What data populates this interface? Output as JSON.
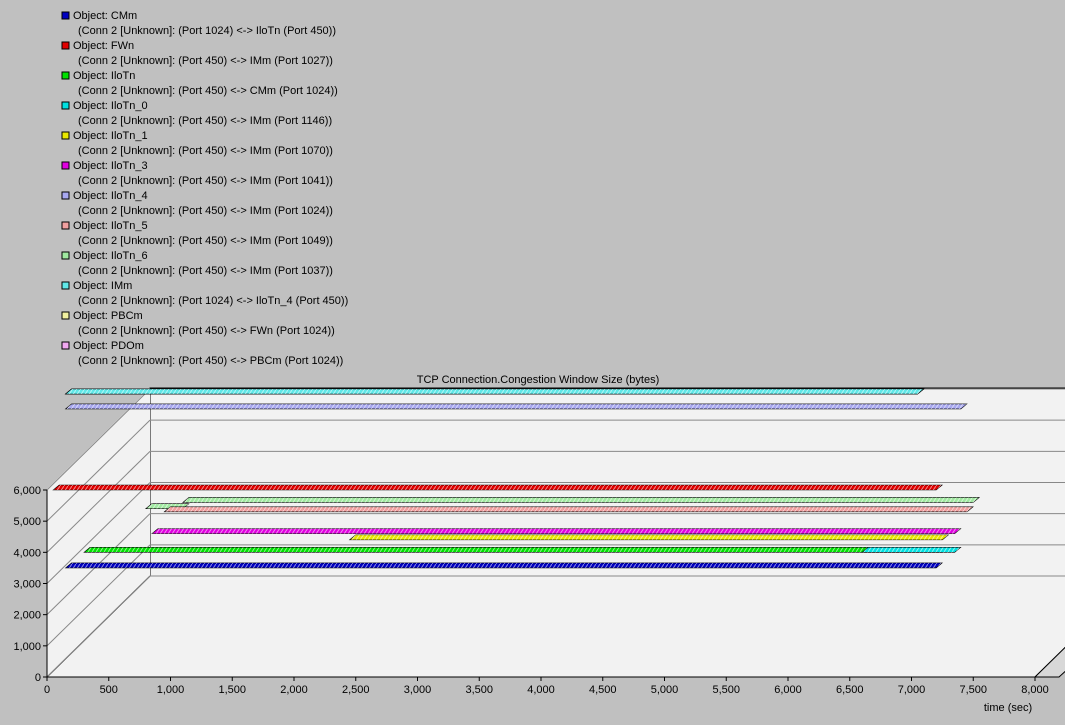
{
  "chart_data": {
    "type": "3d-bar",
    "title": "TCP Connection.Congestion Window Size (bytes)",
    "xlabel": "time (sec)",
    "ylabel": "",
    "xlim": [
      0,
      8000
    ],
    "ylim": [
      0,
      6000
    ],
    "x_ticks": [
      "0",
      "500",
      "1,000",
      "1,500",
      "2,000",
      "2,500",
      "3,000",
      "3,500",
      "4,000",
      "4,500",
      "5,000",
      "5,500",
      "6,000",
      "6,500",
      "7,000",
      "7,500",
      "8,000"
    ],
    "y_ticks": [
      "0",
      "1,000",
      "2,000",
      "3,000",
      "4,000",
      "5,000",
      "6,000"
    ],
    "legend_position": "top-left",
    "grid": true,
    "series": [
      {
        "object": "Object: CMm",
        "conn": "(Conn 2 [Unknown]: (Port 1024) <-> IloTn (Port 450))",
        "color": "#0000c0",
        "segments": [
          {
            "x0": 150,
            "x1": 7200,
            "y": 3500
          }
        ]
      },
      {
        "object": "Object: FWn",
        "conn": "(Conn 2 [Unknown]: (Port 450) <-> IMm (Port 1027))",
        "color": "#e00000",
        "segments": [
          {
            "x0": 50,
            "x1": 7200,
            "y": 6000
          }
        ]
      },
      {
        "object": "Object: IloTn",
        "conn": "(Conn 2 [Unknown]: (Port 450) <-> CMm (Port 1024))",
        "color": "#00e000",
        "segments": [
          {
            "x0": 300,
            "x1": 7250,
            "y": 4000
          }
        ]
      },
      {
        "object": "Object: IloTn_0",
        "conn": "(Conn 2 [Unknown]: (Port 450) <-> IMm (Port 1146))",
        "color": "#00e0e0",
        "segments": [
          {
            "x0": 6600,
            "x1": 7350,
            "y": 4000
          }
        ]
      },
      {
        "object": "Object: IloTn_1",
        "conn": "(Conn 2 [Unknown]: (Port 450) <-> IMm (Port 1070))",
        "color": "#e8e800",
        "segments": [
          {
            "x0": 2450,
            "x1": 7250,
            "y": 4400
          }
        ]
      },
      {
        "object": "Object: IloTn_3",
        "conn": "(Conn 2 [Unknown]: (Port 450) <-> IMm (Port 1041))",
        "color": "#e000e0",
        "segments": [
          {
            "x0": 850,
            "x1": 7350,
            "y": 4600
          }
        ]
      },
      {
        "object": "Object: IloTn_4",
        "conn": "(Conn 2 [Unknown]: (Port 450) <-> IMm (Port 1024))",
        "color": "#a8a8f0",
        "segments": [
          {
            "x0": 150,
            "x1": 7400,
            "y": 8600
          }
        ]
      },
      {
        "object": "Object: IloTn_5",
        "conn": "(Conn 2 [Unknown]: (Port 450) <-> IMm (Port 1049))",
        "color": "#f0a0a0",
        "segments": [
          {
            "x0": 950,
            "x1": 7450,
            "y": 5300
          }
        ]
      },
      {
        "object": "Object: IloTn_6",
        "conn": "(Conn 2 [Unknown]: (Port 450) <-> IMm (Port 1037))",
        "color": "#a0e8a0",
        "segments": [
          {
            "x0": 800,
            "x1": 1100,
            "y": 5400
          },
          {
            "x0": 1100,
            "x1": 7500,
            "y": 5600
          }
        ]
      },
      {
        "object": "Object: IMm",
        "conn": "(Conn 2 [Unknown]: (Port 1024) <-> IloTn_4 (Port 450))",
        "color": "#60e8e8",
        "segments": [
          {
            "x0": 150,
            "x1": 7050,
            "y": 9400
          }
        ]
      },
      {
        "object": "Object: PBCm",
        "conn": "(Conn 2 [Unknown]: (Port 450) <-> FWn (Port 1024))",
        "color": "#f0f0a0",
        "segments": [
          {
            "x0": 150,
            "x1": 7050,
            "y": 9500
          }
        ]
      },
      {
        "object": "Object: PDOm",
        "conn": "(Conn 2 [Unknown]: (Port 450) <-> PBCm (Port 1024))",
        "color": "#f0a8f0",
        "segments": [
          {
            "x0": 150,
            "x1": 7050,
            "y": 9500
          }
        ]
      }
    ]
  }
}
